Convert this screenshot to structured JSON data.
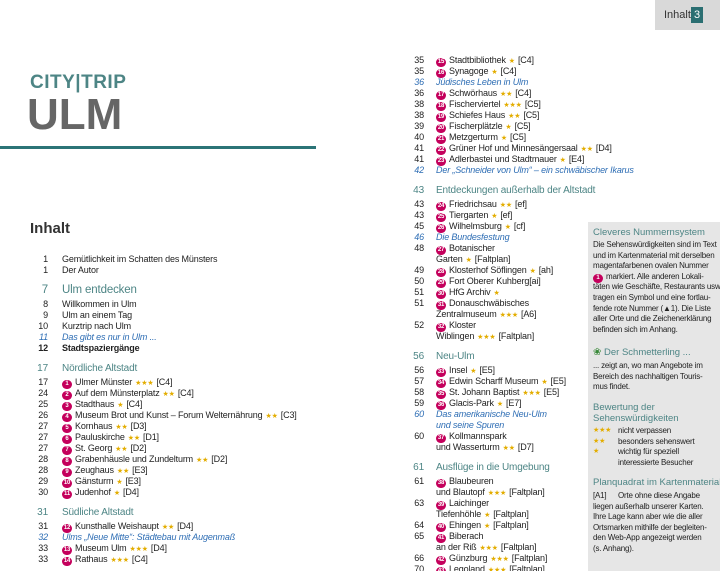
{
  "header": {
    "section": "Inhalt",
    "page": "3"
  },
  "brand": "CITY|TRIP",
  "title": "ULM",
  "heading": "Inhalt",
  "left": {
    "entries": [
      {
        "page": 1,
        "lines": [
          "Gemütlichkeit im Schatten des Münsters"
        ]
      },
      {
        "page": 1,
        "lines": [
          "Der Autor"
        ]
      },
      {
        "page": 7,
        "lines": [
          "Ulm entdecken"
        ],
        "style": "major"
      },
      {
        "page": 8,
        "lines": [
          "Willkommen in Ulm"
        ]
      },
      {
        "page": 9,
        "lines": [
          "Ulm an einem Tag"
        ]
      },
      {
        "page": 10,
        "lines": [
          "Kurztrip nach Ulm"
        ]
      },
      {
        "page": 11,
        "lines": [
          "Das gibt es nur in Ulm ..."
        ],
        "style": "italic"
      },
      {
        "page": 12,
        "lines": [
          "Stadtspaziergänge"
        ],
        "style": "bold"
      },
      {
        "page": 17,
        "lines": [
          "Nördliche Altstadt"
        ],
        "style": "section"
      },
      {
        "page": 17,
        "badge": "1",
        "lines": [
          "Ulmer Münster"
        ],
        "stars": "★★★",
        "ref": "[C4]"
      },
      {
        "page": 24,
        "badge": "2",
        "lines": [
          "Auf dem Münsterplatz"
        ],
        "stars": "★★",
        "ref": "[C4]"
      },
      {
        "page": 25,
        "badge": "3",
        "lines": [
          "Stadthaus"
        ],
        "stars": "★",
        "ref": "[C4]"
      },
      {
        "page": 26,
        "badge": "4",
        "lines": [
          "Museum Brot und Kunst – Forum Welternährung"
        ],
        "stars": "★★",
        "ref": "[C3]"
      },
      {
        "page": 27,
        "badge": "5",
        "lines": [
          "Kornhaus"
        ],
        "stars": "★★",
        "ref": "[D3]"
      },
      {
        "page": 27,
        "badge": "6",
        "lines": [
          "Pauluskirche"
        ],
        "stars": "★★",
        "ref": "[D1]"
      },
      {
        "page": 27,
        "badge": "7",
        "lines": [
          "St. Georg"
        ],
        "stars": "★★",
        "ref": "[D2]"
      },
      {
        "page": 28,
        "badge": "8",
        "lines": [
          "Grabenhäusle und Zundelturm"
        ],
        "stars": "★★",
        "ref": "[D2]"
      },
      {
        "page": 28,
        "badge": "9",
        "lines": [
          "Zeughaus"
        ],
        "stars": "★★",
        "ref": "[E3]"
      },
      {
        "page": 29,
        "badge": "10",
        "lines": [
          "Gänsturm"
        ],
        "stars": "★",
        "ref": "[E3]"
      },
      {
        "page": 30,
        "badge": "11",
        "lines": [
          "Judenhof"
        ],
        "stars": "★",
        "ref": "[D4]"
      },
      {
        "page": 31,
        "lines": [
          "Südliche Altstadt"
        ],
        "style": "section"
      },
      {
        "page": 31,
        "badge": "12",
        "lines": [
          "Kunsthalle Weishaupt"
        ],
        "stars": "★★",
        "ref": "[D4]"
      },
      {
        "page": 32,
        "lines": [
          "Ulms „Neue Mitte“: Städtebau mit Augenmaß"
        ],
        "style": "italic"
      },
      {
        "page": 33,
        "badge": "13",
        "lines": [
          "Museum Ulm"
        ],
        "stars": "★★★",
        "ref": "[D4]"
      },
      {
        "page": 33,
        "badge": "14",
        "lines": [
          "Rathaus"
        ],
        "stars": "★★★",
        "ref": "[C4]"
      }
    ]
  },
  "right": {
    "entries": [
      {
        "page": 35,
        "badge": "15",
        "lines": [
          "Stadtbibliothek"
        ],
        "stars": "★",
        "ref": "[C4]"
      },
      {
        "page": 35,
        "badge": "16",
        "lines": [
          "Synagoge"
        ],
        "stars": "★",
        "ref": "[C4]"
      },
      {
        "page": 36,
        "lines": [
          "Jüdisches Leben in Ulm"
        ],
        "style": "italic"
      },
      {
        "page": 36,
        "badge": "17",
        "lines": [
          "Schwörhaus"
        ],
        "stars": "★★",
        "ref": "[C4]"
      },
      {
        "page": 38,
        "badge": "18",
        "lines": [
          "Fischerviertel"
        ],
        "stars": "★★★",
        "ref": "[C5]"
      },
      {
        "page": 38,
        "badge": "19",
        "lines": [
          "Schiefes Haus"
        ],
        "stars": "★★",
        "ref": "[C5]"
      },
      {
        "page": 39,
        "badge": "20",
        "lines": [
          "Fischerplätzle"
        ],
        "stars": "★",
        "ref": "[C5]"
      },
      {
        "page": 40,
        "badge": "21",
        "lines": [
          "Metzgerturm"
        ],
        "stars": "★",
        "ref": "[C5]"
      },
      {
        "page": 41,
        "badge": "22",
        "lines": [
          "Grüner Hof und Minnesängersaal"
        ],
        "stars": "★★",
        "ref": "[D4]"
      },
      {
        "page": 41,
        "badge": "23",
        "lines": [
          "Adlerbastei und Stadtmauer"
        ],
        "stars": "★",
        "ref": "[E4]"
      },
      {
        "page": 42,
        "lines": [
          "Der „Schneider von Ulm“ – ein schwäbischer Ikarus"
        ],
        "style": "italic"
      },
      {
        "page": 43,
        "lines": [
          "Entdeckungen außerhalb der Altstadt"
        ],
        "style": "section"
      },
      {
        "page": 43,
        "badge": "24",
        "lines": [
          "Friedrichsau"
        ],
        "stars": "★★",
        "ref": "[ef]"
      },
      {
        "page": 43,
        "badge": "25",
        "lines": [
          "Tiergarten"
        ],
        "stars": "★",
        "ref": "[ef]"
      },
      {
        "page": 45,
        "badge": "26",
        "lines": [
          "Wilhelmsburg"
        ],
        "stars": "★",
        "ref": "[cf]"
      },
      {
        "page": 46,
        "lines": [
          "Die Bundesfestung"
        ],
        "style": "italic"
      },
      {
        "page": 48,
        "badge": "27",
        "lines": [
          "Botanischer",
          "Garten"
        ],
        "stars": "★",
        "ref": "[Faltplan]"
      },
      {
        "page": 49,
        "badge": "28",
        "lines": [
          "Klosterhof Söflingen"
        ],
        "stars": "★",
        "ref": "[ah]"
      },
      {
        "page": 50,
        "badge": "29",
        "lines": [
          "Fort Oberer Kuhberg"
        ],
        "ref": "[ai]"
      },
      {
        "page": 51,
        "badge": "30",
        "lines": [
          "HfG Archiv"
        ],
        "stars": "★"
      },
      {
        "page": 51,
        "badge": "31",
        "lines": [
          "Donauschwäbisches",
          "Zentralmuseum"
        ],
        "stars": "★★★",
        "ref": "[A6]"
      },
      {
        "page": 52,
        "badge": "32",
        "lines": [
          "Kloster",
          "Wiblingen"
        ],
        "stars": "★★★",
        "ref": "[Faltplan]"
      },
      {
        "page": 56,
        "lines": [
          "Neu-Ulm"
        ],
        "style": "section"
      },
      {
        "page": 56,
        "badge": "33",
        "lines": [
          "Insel"
        ],
        "stars": "★",
        "ref": "[E5]"
      },
      {
        "page": 57,
        "badge": "34",
        "lines": [
          "Edwin Scharff Museum"
        ],
        "stars": "★",
        "ref": "[E5]"
      },
      {
        "page": 58,
        "badge": "35",
        "lines": [
          "St. Johann Baptist"
        ],
        "stars": "★★★",
        "ref": "[E5]"
      },
      {
        "page": 59,
        "badge": "36",
        "lines": [
          "Glacis-Park"
        ],
        "stars": "★",
        "ref": "[E7]"
      },
      {
        "page": 60,
        "lines": [
          "Das amerikanische Neu-Ulm",
          "und seine Spuren"
        ],
        "style": "italic"
      },
      {
        "page": 60,
        "badge": "37",
        "lines": [
          "Kollmannspark",
          "und Wasserturm"
        ],
        "stars": "★★",
        "ref": "[D7]"
      },
      {
        "page": 61,
        "lines": [
          "Ausflüge in die Umgebung"
        ],
        "style": "section"
      },
      {
        "page": 61,
        "badge": "38",
        "lines": [
          "Blaubeuren",
          "und Blautopf"
        ],
        "stars": "★★★",
        "ref": "[Faltplan]"
      },
      {
        "page": 63,
        "badge": "39",
        "lines": [
          "Laichinger",
          "Tiefenhöhle"
        ],
        "stars": "★",
        "ref": "[Faltplan]"
      },
      {
        "page": 64,
        "badge": "40",
        "lines": [
          "Ehingen"
        ],
        "stars": "★",
        "ref": "[Faltplan]"
      },
      {
        "page": 65,
        "badge": "41",
        "lines": [
          "Biberach",
          "an der Riß"
        ],
        "stars": "★★★",
        "ref": "[Faltplan]"
      },
      {
        "page": 66,
        "badge": "42",
        "lines": [
          "Günzburg"
        ],
        "stars": "★★★",
        "ref": "[Faltplan]"
      },
      {
        "page": 70,
        "badge": "43",
        "lines": [
          "Legoland"
        ],
        "stars": "★★★",
        "ref": "[Faltplan]"
      }
    ]
  },
  "sidebar": {
    "numbers": {
      "title": "Cleveres Nummernsystem",
      "badge": "1",
      "lines": [
        "Die Sehenswürdigkeiten sind im Text",
        "und im Kartenmaterial mit derselben",
        "magentafarbenen ovalen Nummer",
        "markiert. Alle anderen Lokali-",
        "täten wie Geschäfte, Restaurants usw.",
        "tragen ein Symbol und eine fortlau-",
        "fende rote Nummer (▲1). Die Liste",
        "aller Orte und die Zeichenerklärung",
        "befinden sich im Anhang."
      ]
    },
    "butterfly": {
      "title": "Der Schmetterling ...",
      "lines": [
        "... zeigt an, wo man Angebote im",
        "Bereich des nachhaltigen Touris-",
        "mus findet."
      ]
    },
    "rating": {
      "title": [
        "Bewertung der",
        "Sehenswürdigkeiten"
      ],
      "items": [
        {
          "stars": "★★★",
          "lines": [
            "nicht verpassen"
          ]
        },
        {
          "stars": "★★",
          "lines": [
            "besonders sehenswert"
          ]
        },
        {
          "stars": "★",
          "lines": [
            "wichtig für speziell",
            "interessierte Besucher"
          ]
        }
      ]
    },
    "grid": {
      "title": "Planquadrat im Kartenmaterial",
      "code": "[A1]",
      "lines": [
        "Orte ohne diese Angabe",
        "liegen außerhalb unserer Karten.",
        "Ihre Lage kann aber wie die aller",
        "Ortsmarken mithilfe der begleiten-",
        "den Web-App angezeigt werden",
        "(s. Anhang)."
      ]
    }
  }
}
